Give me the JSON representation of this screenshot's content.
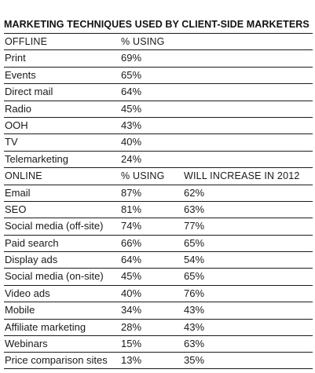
{
  "chart_data": {
    "type": "table",
    "title": "MARKETING TECHNIQUES USED BY CLIENT-SIDE MARKETERS",
    "sections": [
      {
        "name": "OFFLINE",
        "columns": [
          "% USING"
        ],
        "rows": [
          {
            "label": "Print",
            "using": "69%"
          },
          {
            "label": "Events",
            "using": "65%"
          },
          {
            "label": "Direct mail",
            "using": "64%"
          },
          {
            "label": "Radio",
            "using": "45%"
          },
          {
            "label": "OOH",
            "using": "43%"
          },
          {
            "label": "TV",
            "using": "40%"
          },
          {
            "label": "Telemarketing",
            "using": "24%"
          }
        ]
      },
      {
        "name": "ONLINE",
        "columns": [
          "% USING",
          "WILL INCREASE IN 2012"
        ],
        "rows": [
          {
            "label": "Email",
            "using": "87%",
            "increase": "62%"
          },
          {
            "label": "SEO",
            "using": "81%",
            "increase": "63%"
          },
          {
            "label": "Social media (off-site)",
            "using": "74%",
            "increase": "77%"
          },
          {
            "label": "Paid search",
            "using": "66%",
            "increase": "65%"
          },
          {
            "label": "Display ads",
            "using": "64%",
            "increase": "54%"
          },
          {
            "label": "Social media (on-site)",
            "using": "45%",
            "increase": "65%"
          },
          {
            "label": "Video ads",
            "using": "40%",
            "increase": "76%"
          },
          {
            "label": "Mobile",
            "using": "34%",
            "increase": "43%"
          },
          {
            "label": "Affiliate marketing",
            "using": "28%",
            "increase": "43%"
          },
          {
            "label": "Webinars",
            "using": "15%",
            "increase": "63%"
          },
          {
            "label": "Price comparison sites",
            "using": "13%",
            "increase": "35%"
          }
        ]
      }
    ]
  }
}
